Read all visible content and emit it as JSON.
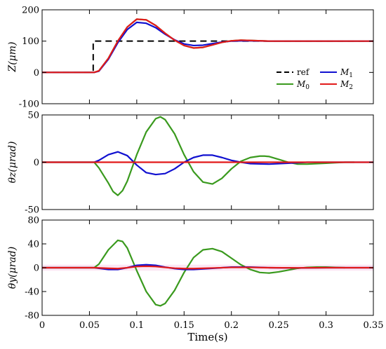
{
  "chart_data": {
    "type": "line",
    "xlabel": "Time(s)",
    "xlim": [
      0,
      0.35
    ],
    "xticks": [
      0,
      0.05,
      0.1,
      0.15,
      0.2,
      0.25,
      0.3,
      0.35
    ],
    "xtick_labels": [
      "0",
      "0.05",
      "0.1",
      "0.15",
      "0.2",
      "0.25",
      "0.3",
      "0.35"
    ],
    "colors": {
      "ref": "#000000",
      "M0": "#3a9a1e",
      "M1": "#1010d0",
      "M2": "#e21a1a"
    },
    "panels": [
      {
        "ylabel": "Z(μm)",
        "ylim": [
          -100,
          200
        ],
        "yticks": [
          -100,
          0,
          100,
          200
        ],
        "ytick_labels": [
          "-100",
          "0",
          "100",
          "200"
        ],
        "legend": {
          "position": "lower-right",
          "entries": [
            {
              "key": "ref",
              "label": "ref",
              "style": "dashed"
            },
            {
              "key": "M1",
              "label": "M",
              "sub": "1"
            },
            {
              "key": "M0",
              "label": "M",
              "sub": "0"
            },
            {
              "key": "M2",
              "label": "M",
              "sub": "2"
            }
          ]
        },
        "series": [
          {
            "key": "ref",
            "style": "dashed",
            "x": [
              0,
              0.054,
              0.054,
              0.35
            ],
            "y": [
              0,
              0,
              100,
              100
            ]
          },
          {
            "key": "M0",
            "x": [
              0,
              0.055,
              0.06,
              0.07,
              0.08,
              0.09,
              0.1,
              0.11,
              0.12,
              0.13,
              0.14,
              0.15,
              0.16,
              0.17,
              0.18,
              0.19,
              0.2,
              0.21,
              0.22,
              0.24,
              0.27,
              0.35
            ],
            "y": [
              0,
              0,
              5,
              45,
              100,
              145,
              170,
              168,
              150,
              125,
              103,
              86,
              78,
              80,
              88,
              96,
              101,
              103,
              102,
              100,
              100,
              100
            ]
          },
          {
            "key": "M1",
            "x": [
              0,
              0.055,
              0.06,
              0.07,
              0.08,
              0.09,
              0.1,
              0.11,
              0.12,
              0.13,
              0.14,
              0.15,
              0.16,
              0.17,
              0.18,
              0.19,
              0.2,
              0.21,
              0.22,
              0.24,
              0.27,
              0.35
            ],
            "y": [
              0,
              0,
              4,
              42,
              95,
              137,
              160,
              157,
              143,
              122,
              104,
              91,
              86,
              87,
              92,
              97,
              100,
              101,
              101,
              100,
              100,
              100
            ]
          },
          {
            "key": "M2",
            "x": [
              0,
              0.055,
              0.06,
              0.07,
              0.08,
              0.09,
              0.1,
              0.11,
              0.12,
              0.13,
              0.14,
              0.15,
              0.16,
              0.17,
              0.18,
              0.19,
              0.2,
              0.21,
              0.22,
              0.24,
              0.27,
              0.35
            ],
            "y": [
              0,
              0,
              5,
              45,
              100,
              145,
              170,
              168,
              150,
              125,
              103,
              86,
              78,
              80,
              88,
              96,
              101,
              103,
              102,
              100,
              100,
              100
            ]
          }
        ]
      },
      {
        "ylabel": "θz(μrad)",
        "ylim": [
          -50,
          50
        ],
        "yticks": [
          -50,
          0,
          50
        ],
        "ytick_labels": [
          "-50",
          "0",
          "50"
        ],
        "series": [
          {
            "key": "M0",
            "x": [
              0,
              0.055,
              0.06,
              0.07,
              0.075,
              0.08,
              0.085,
              0.09,
              0.1,
              0.11,
              0.12,
              0.125,
              0.13,
              0.14,
              0.15,
              0.16,
              0.17,
              0.18,
              0.19,
              0.2,
              0.21,
              0.22,
              0.23,
              0.235,
              0.24,
              0.25,
              0.26,
              0.27,
              0.28,
              0.29,
              0.3,
              0.31,
              0.32,
              0.33
            ],
            "y": [
              0,
              0,
              -6,
              -22,
              -31,
              -35,
              -30,
              -20,
              8,
              32,
              46,
              48,
              45,
              30,
              8,
              -10,
              -21,
              -23,
              -17,
              -7,
              1,
              5,
              6.5,
              6.5,
              6,
              3,
              0,
              -2,
              -2,
              -1.5,
              -1,
              -0.5,
              0,
              0
            ]
          },
          {
            "key": "M1",
            "x": [
              0,
              0.055,
              0.06,
              0.07,
              0.08,
              0.09,
              0.1,
              0.11,
              0.12,
              0.13,
              0.14,
              0.15,
              0.16,
              0.17,
              0.18,
              0.19,
              0.2,
              0.21,
              0.22,
              0.24,
              0.26,
              0.28,
              0.3,
              0.35
            ],
            "y": [
              0,
              0,
              2,
              8,
              11,
              7,
              -3,
              -11,
              -13,
              -12,
              -7,
              0,
              5,
              7.5,
              7.5,
              5,
              2,
              0,
              -1.5,
              -2,
              -1,
              0,
              0,
              0
            ]
          },
          {
            "key": "M2",
            "x": [
              0,
              0.35
            ],
            "y": [
              0,
              0
            ]
          }
        ]
      },
      {
        "ylabel": "θy(μrad)",
        "ylim": [
          -80,
          80
        ],
        "yticks": [
          -80,
          -40,
          0,
          40,
          80
        ],
        "ytick_labels": [
          "-80",
          "-40",
          "0",
          "40",
          "80"
        ],
        "series": [
          {
            "key": "M0",
            "x": [
              0,
              0.055,
              0.06,
              0.07,
              0.08,
              0.085,
              0.09,
              0.1,
              0.11,
              0.12,
              0.125,
              0.13,
              0.14,
              0.15,
              0.16,
              0.17,
              0.18,
              0.19,
              0.2,
              0.21,
              0.22,
              0.23,
              0.24,
              0.25,
              0.26,
              0.27,
              0.28,
              0.29,
              0.3,
              0.31,
              0.32
            ],
            "y": [
              0,
              0,
              6,
              30,
              46,
              44,
              33,
              -5,
              -40,
              -62,
              -64,
              -60,
              -38,
              -8,
              17,
              30,
              32,
              27,
              16,
              5,
              -3,
              -8,
              -9,
              -7,
              -4,
              -1,
              0.5,
              1,
              1,
              0.5,
              0
            ]
          },
          {
            "key": "M1",
            "x": [
              0,
              0.055,
              0.07,
              0.08,
              0.09,
              0.1,
              0.11,
              0.12,
              0.13,
              0.14,
              0.15,
              0.16,
              0.18,
              0.2,
              0.22,
              0.24,
              0.27,
              0.3,
              0.35
            ],
            "y": [
              0,
              0,
              -3,
              -3,
              0,
              4,
              5,
              4,
              1,
              -1.5,
              -3,
              -3,
              -1,
              1,
              1,
              0,
              -0.5,
              0,
              0
            ]
          },
          {
            "key": "M2",
            "x": [
              0,
              0.055,
              0.07,
              0.08,
              0.09,
              0.1,
              0.11,
              0.12,
              0.13,
              0.14,
              0.15,
              0.16,
              0.18,
              0.2,
              0.22,
              0.24,
              0.27,
              0.3,
              0.35
            ],
            "y": [
              0,
              0,
              -1,
              -1.5,
              0,
              2,
              2.5,
              2,
              0.5,
              -0.8,
              -1.5,
              -1.5,
              -0.5,
              0.5,
              0.5,
              0,
              -0.3,
              0,
              0
            ]
          }
        ]
      }
    ]
  }
}
